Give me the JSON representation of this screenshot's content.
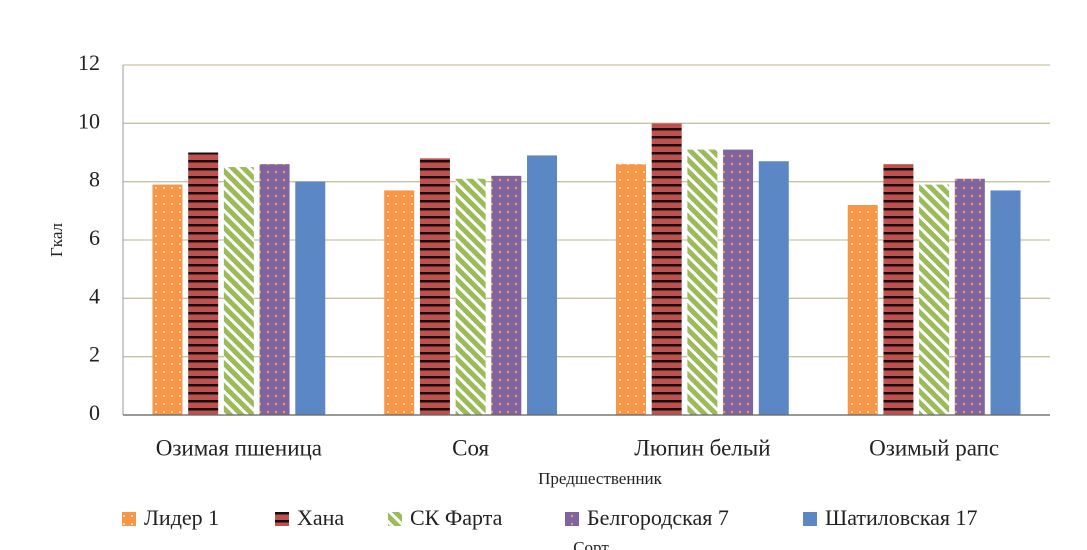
{
  "chart_data": {
    "type": "bar",
    "categories": [
      "Озимая пшеница",
      "Соя",
      "Люпин белый",
      "Озимый рапс"
    ],
    "series": [
      {
        "name": "Лидер 1",
        "color": "#f79646",
        "pattern": "dots",
        "values": [
          7.9,
          7.7,
          8.6,
          7.2
        ]
      },
      {
        "name": "Хана",
        "color": "#c0504d",
        "pattern": "hstripes",
        "values": [
          9.0,
          8.8,
          10.0,
          8.6
        ]
      },
      {
        "name": "СК Фарта",
        "color": "#9bbb59",
        "pattern": "diagonal",
        "values": [
          8.5,
          8.1,
          9.1,
          7.9
        ]
      },
      {
        "name": "Белгородская 7",
        "color": "#8064a2",
        "pattern": "purpledots",
        "values": [
          8.6,
          8.2,
          9.1,
          8.1
        ]
      },
      {
        "name": "Шатиловская 17",
        "color": "#5b87c5",
        "pattern": "solid",
        "values": [
          8.0,
          8.9,
          8.7,
          7.7
        ]
      }
    ],
    "y_label": "Гкал",
    "x_label": "Предшественник",
    "legend_title": "Сорт",
    "ylim": [
      0,
      12
    ],
    "yticks": [
      0,
      2,
      4,
      6,
      8,
      10,
      12
    ],
    "grid": true,
    "legend": "bottom"
  }
}
